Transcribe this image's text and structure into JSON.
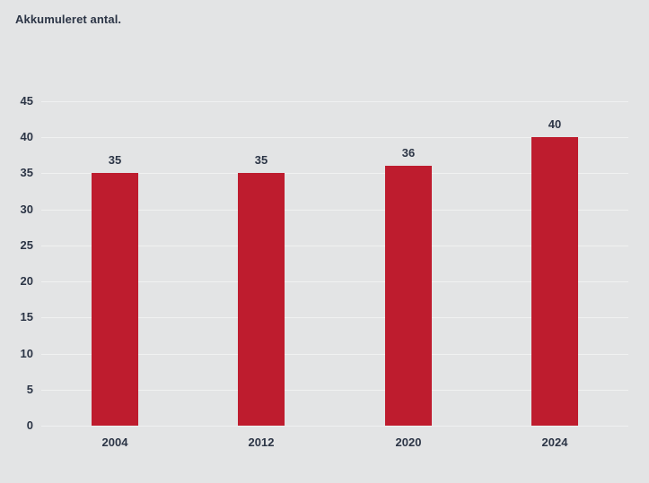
{
  "header": {
    "title": "Akkumuleret antal."
  },
  "colors": {
    "background": "#e3e4e5",
    "bar": "#be1c2e",
    "text": "#2c3546",
    "gridline": "#f0f1f1"
  },
  "chart_data": {
    "type": "bar",
    "title": "Akkumuleret antal.",
    "categories": [
      "2004",
      "2012",
      "2020",
      "2024"
    ],
    "values": [
      35,
      35,
      36,
      40
    ],
    "data_labels": [
      35,
      35,
      36,
      40
    ],
    "xlabel": "",
    "ylabel": "",
    "ylim": [
      0,
      45
    ],
    "ytick_step": 5,
    "yticks": [
      45,
      40,
      35,
      30,
      25,
      20,
      15,
      10,
      5,
      0
    ],
    "grid": true,
    "legend": "none",
    "bar_color": "#be1c2e"
  }
}
